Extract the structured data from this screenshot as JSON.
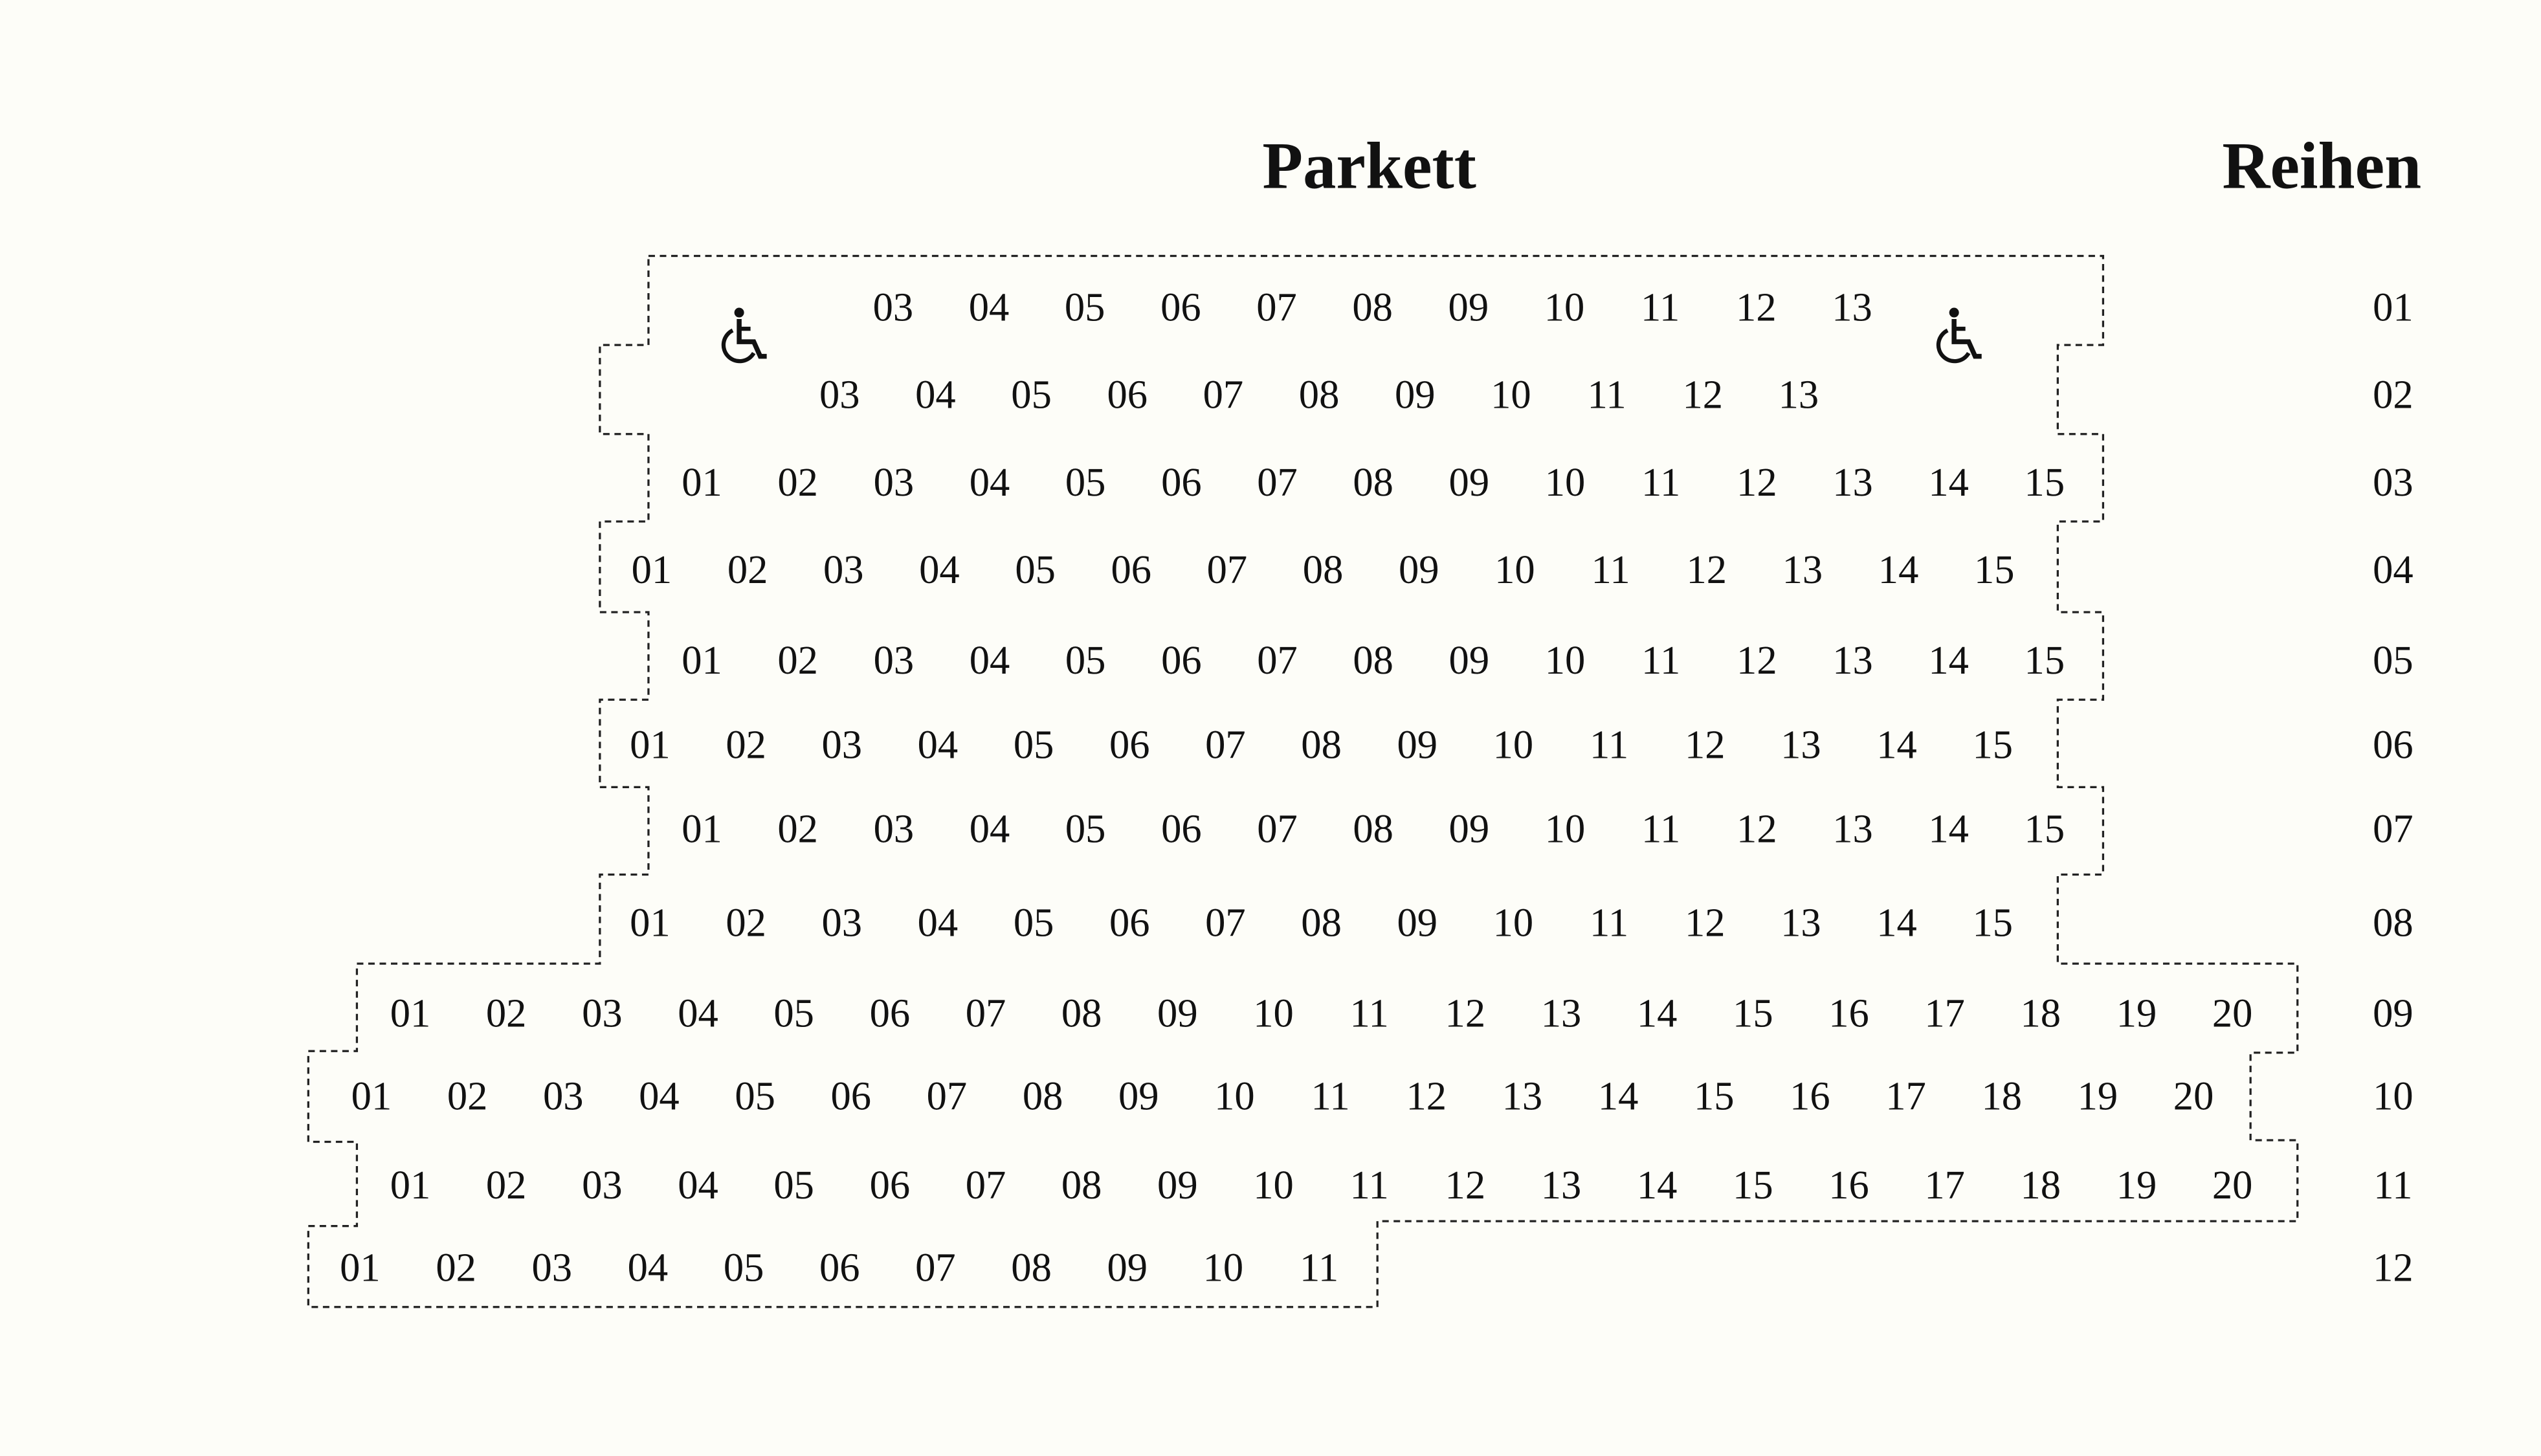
{
  "section_title": "Parkett",
  "rows_title": "Reihen",
  "colors": {
    "background": "#fdfdf8",
    "text": "#111111",
    "outline": "#222222"
  },
  "wheelchair_icon": "wheelchair-icon",
  "rows": [
    {
      "label": "01",
      "seats": [
        "03",
        "04",
        "05",
        "06",
        "07",
        "08",
        "09",
        "10",
        "11",
        "12",
        "13"
      ],
      "wheelchair_spaces": 2
    },
    {
      "label": "02",
      "seats": [
        "03",
        "04",
        "05",
        "06",
        "07",
        "08",
        "09",
        "10",
        "11",
        "12",
        "13"
      ]
    },
    {
      "label": "03",
      "seats": [
        "01",
        "02",
        "03",
        "04",
        "05",
        "06",
        "07",
        "08",
        "09",
        "10",
        "11",
        "12",
        "13",
        "14",
        "15"
      ]
    },
    {
      "label": "04",
      "seats": [
        "01",
        "02",
        "03",
        "04",
        "05",
        "06",
        "07",
        "08",
        "09",
        "10",
        "11",
        "12",
        "13",
        "14",
        "15"
      ]
    },
    {
      "label": "05",
      "seats": [
        "01",
        "02",
        "03",
        "04",
        "05",
        "06",
        "07",
        "08",
        "09",
        "10",
        "11",
        "12",
        "13",
        "14",
        "15"
      ]
    },
    {
      "label": "06",
      "seats": [
        "01",
        "02",
        "03",
        "04",
        "05",
        "06",
        "07",
        "08",
        "09",
        "10",
        "11",
        "12",
        "13",
        "14",
        "15"
      ]
    },
    {
      "label": "07",
      "seats": [
        "01",
        "02",
        "03",
        "04",
        "05",
        "06",
        "07",
        "08",
        "09",
        "10",
        "11",
        "12",
        "13",
        "14",
        "15"
      ]
    },
    {
      "label": "08",
      "seats": [
        "01",
        "02",
        "03",
        "04",
        "05",
        "06",
        "07",
        "08",
        "09",
        "10",
        "11",
        "12",
        "13",
        "14",
        "15"
      ]
    },
    {
      "label": "09",
      "seats": [
        "01",
        "02",
        "03",
        "04",
        "05",
        "06",
        "07",
        "08",
        "09",
        "10",
        "11",
        "12",
        "13",
        "14",
        "15",
        "16",
        "17",
        "18",
        "19",
        "20"
      ]
    },
    {
      "label": "10",
      "seats": [
        "01",
        "02",
        "03",
        "04",
        "05",
        "06",
        "07",
        "08",
        "09",
        "10",
        "11",
        "12",
        "13",
        "14",
        "15",
        "16",
        "17",
        "18",
        "19",
        "20"
      ]
    },
    {
      "label": "11",
      "seats": [
        "01",
        "02",
        "03",
        "04",
        "05",
        "06",
        "07",
        "08",
        "09",
        "10",
        "11",
        "12",
        "13",
        "14",
        "15",
        "16",
        "17",
        "18",
        "19",
        "20"
      ]
    },
    {
      "label": "12",
      "seats": [
        "01",
        "02",
        "03",
        "04",
        "05",
        "06",
        "07",
        "08",
        "09",
        "10",
        "11"
      ]
    }
  ]
}
